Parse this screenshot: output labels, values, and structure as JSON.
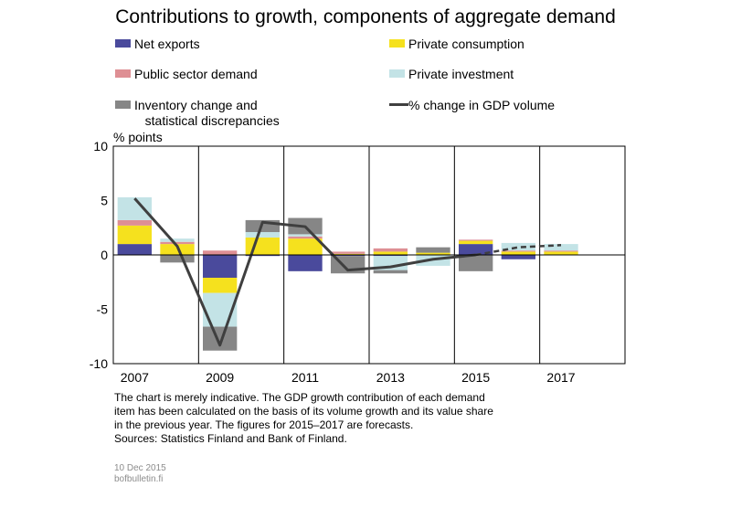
{
  "chart_data": {
    "type": "bar",
    "title": "Contributions to growth, components of aggregate demand",
    "ylabel": "% points",
    "ylim": [
      -10,
      10
    ],
    "yticks": [
      "10",
      "5",
      "0",
      "-5",
      "-10"
    ],
    "xticks": [
      "2007",
      "2009",
      "2011",
      "2013",
      "2015",
      "2017"
    ],
    "categories": [
      "2007",
      "2008",
      "2009",
      "2010",
      "2011",
      "2012",
      "2013",
      "2014",
      "2015",
      "2016",
      "2017"
    ],
    "stacked": true,
    "grid": "vertical lines every two years",
    "series": [
      {
        "name": "Net exports",
        "color": "#4a4a9c",
        "values": [
          1.0,
          0.0,
          -2.1,
          -0.1,
          -1.5,
          -0.1,
          -0.1,
          0.0,
          1.0,
          -0.4,
          0.0
        ]
      },
      {
        "name": "Private consumption",
        "color": "#f5e11e",
        "values": [
          1.7,
          1.0,
          -1.4,
          1.6,
          1.5,
          0.1,
          0.3,
          0.2,
          0.3,
          0.3,
          0.3
        ]
      },
      {
        "name": "Public sector demand",
        "color": "#de8f94",
        "values": [
          0.5,
          0.2,
          0.4,
          0.0,
          0.2,
          0.2,
          0.3,
          0.0,
          0.1,
          0.1,
          0.1
        ]
      },
      {
        "name": "Private investment",
        "color": "#c3e3e6",
        "values": [
          2.1,
          0.3,
          -3.1,
          0.5,
          0.2,
          0.0,
          -1.3,
          -1.0,
          0.0,
          0.7,
          0.6
        ]
      },
      {
        "name": "Inventory change and statistical discrepancies",
        "color": "#868686",
        "values": [
          0.0,
          -0.7,
          -2.2,
          1.1,
          1.5,
          -1.6,
          -0.3,
          0.5,
          -1.5,
          0.0,
          0.0
        ]
      }
    ],
    "line": {
      "name": "% change in GDP volume",
      "color": "#3f3f3f",
      "values": [
        5.2,
        0.8,
        -8.3,
        3.0,
        2.6,
        -1.4,
        -1.1,
        -0.4,
        0.0,
        0.7,
        0.9
      ],
      "forecast_from": "2015"
    },
    "legend": [
      {
        "label": "Net exports",
        "kind": "bar",
        "color": "#4a4a9c"
      },
      {
        "label": "Private consumption",
        "kind": "bar",
        "color": "#f5e11e"
      },
      {
        "label": "Public sector demand",
        "kind": "bar",
        "color": "#de8f94"
      },
      {
        "label": "Private investment",
        "kind": "bar",
        "color": "#c3e3e6"
      },
      {
        "label": "Inventory change and\n   statistical discrepancies",
        "kind": "bar",
        "color": "#868686"
      },
      {
        "label": "% change in GDP volume",
        "kind": "line",
        "color": "#3f3f3f"
      }
    ],
    "legend_placement": "top"
  },
  "note": {
    "line1": "The chart is merely indicative. The GDP growth contribution of each demand",
    "line2": "item has been calculated on the basis of its volume growth and its value share",
    "line3": "in the previous year. The figures for 2015–2017 are forecasts.",
    "line4": "Sources: Statistics Finland and Bank of Finland."
  },
  "meta": {
    "date": "10 Dec 2015",
    "site": "bofbulletin.fi"
  }
}
